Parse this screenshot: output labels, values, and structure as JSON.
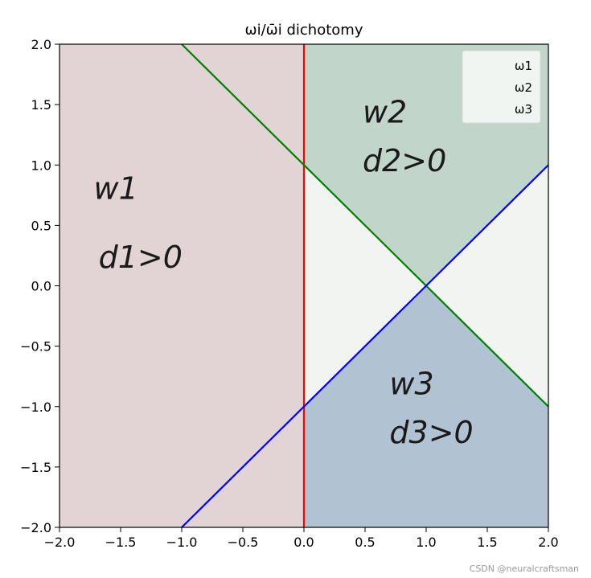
{
  "chart_data": {
    "type": "area",
    "title": "ωi/ω̄i dichotomy",
    "xlim": [
      -2.0,
      2.0
    ],
    "ylim": [
      -2.0,
      2.0
    ],
    "xticks": [
      -2.0,
      -1.5,
      -1.0,
      -0.5,
      0.0,
      0.5,
      1.0,
      1.5,
      2.0
    ],
    "yticks": [
      -2.0,
      -1.5,
      -1.0,
      -0.5,
      0.0,
      0.5,
      1.0,
      1.5,
      2.0
    ],
    "xtick_labels": [
      "−2.0",
      "−1.5",
      "−1.0",
      "−0.5",
      "0.0",
      "0.5",
      "1.0",
      "1.5",
      "2.0"
    ],
    "ytick_labels": [
      "−2.0",
      "−1.5",
      "−1.0",
      "−0.5",
      "0.0",
      "0.5",
      "1.0",
      "1.5",
      "2.0"
    ],
    "grid": false,
    "legend_position": "top-right",
    "legend": [
      "ω1",
      "ω2",
      "ω3"
    ],
    "background_color": "#f2f4f2",
    "regions": [
      {
        "name": "ω1",
        "color": "#e2d3d4",
        "polygon": [
          [
            -2,
            -2
          ],
          [
            0,
            -2
          ],
          [
            0,
            2
          ],
          [
            -2,
            2
          ]
        ]
      },
      {
        "name": "ω2",
        "color": "#c1d5ca",
        "polygon": [
          [
            0,
            1
          ],
          [
            0,
            2
          ],
          [
            2,
            2
          ],
          [
            2,
            1
          ],
          [
            1,
            0
          ]
        ]
      },
      {
        "name": "ω3",
        "color": "#b1c3d3",
        "polygon": [
          [
            0,
            -1
          ],
          [
            1,
            0
          ],
          [
            2,
            -1
          ],
          [
            2,
            -2
          ],
          [
            0,
            -2
          ]
        ]
      }
    ],
    "lines": [
      {
        "name": "d1",
        "color": "#ff0000",
        "points": [
          [
            0,
            -2
          ],
          [
            0,
            2
          ]
        ]
      },
      {
        "name": "d2",
        "color": "#008000",
        "points": [
          [
            -1,
            2
          ],
          [
            2,
            -1
          ]
        ]
      },
      {
        "name": "d3",
        "color": "#0000ff",
        "points": [
          [
            -1,
            -2
          ],
          [
            2,
            1
          ]
        ]
      }
    ],
    "annotations": [
      {
        "text": "w1",
        "x": -1.72,
        "y": 0.72
      },
      {
        "text": "d1>0",
        "x": -1.68,
        "y": 0.15
      },
      {
        "text": "w2",
        "x": 0.48,
        "y": 1.35
      },
      {
        "text": "d2>0",
        "x": 0.48,
        "y": 0.95
      },
      {
        "text": "w3",
        "x": 0.7,
        "y": -0.9
      },
      {
        "text": "d3>0",
        "x": 0.7,
        "y": -1.3
      }
    ]
  },
  "watermark": "CSDN @neuralcraftsman"
}
